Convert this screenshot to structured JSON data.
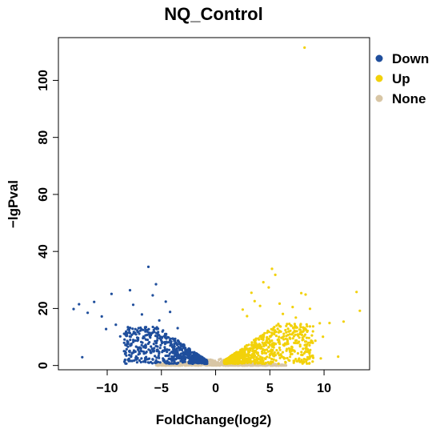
{
  "chart_data": {
    "type": "scatter",
    "title": "NQ_Control",
    "xlabel": "FoldChange(log2)",
    "ylabel": "−lgPval",
    "xlim": [
      -14.5,
      14.2
    ],
    "ylim": [
      -1.5,
      115
    ],
    "xticks": [
      -10,
      -5,
      0,
      5,
      10
    ],
    "xtick_labels": [
      "−10",
      "−5",
      "0",
      "5",
      "10"
    ],
    "yticks": [
      0,
      20,
      40,
      60,
      80,
      100
    ],
    "ytick_labels": [
      "0",
      "20",
      "40",
      "60",
      "80",
      "100"
    ],
    "grid": false,
    "legend_position": "right",
    "series": [
      {
        "name": "Down",
        "color": "#1f4e9c",
        "points": [
          [
            -13.1,
            19.8
          ],
          [
            -12.6,
            21.5
          ],
          [
            -12.3,
            2.9
          ],
          [
            -11.8,
            18.5
          ],
          [
            -11.2,
            22.3
          ],
          [
            -10.5,
            17.2
          ],
          [
            -10.1,
            12.8
          ],
          [
            -9.6,
            25.1
          ],
          [
            -9.2,
            14.3
          ],
          [
            -8.8,
            10.2
          ],
          [
            -8.4,
            9.1
          ],
          [
            -7.9,
            26.4
          ],
          [
            -7.6,
            21.3
          ],
          [
            -7.2,
            8.7
          ],
          [
            -6.8,
            17.9
          ],
          [
            -6.5,
            13.4
          ],
          [
            -6.2,
            34.6
          ],
          [
            -5.8,
            24.6
          ],
          [
            -5.5,
            28.5
          ],
          [
            -5.2,
            15.8
          ],
          [
            -4.9,
            11.9
          ],
          [
            -4.6,
            22.4
          ],
          [
            -4.2,
            18.8
          ],
          [
            -3.8,
            7.4
          ],
          [
            -3.5,
            13.1
          ]
        ],
        "cloud": {
          "count": 650,
          "x_range": [
            -8.5,
            -0.8
          ],
          "y_max": 13
        }
      },
      {
        "name": "Up",
        "color": "#f2d10a",
        "points": [
          [
            8.2,
            111.5
          ],
          [
            13.0,
            25.8
          ],
          [
            13.3,
            19.2
          ],
          [
            11.8,
            15.4
          ],
          [
            10.5,
            14.9
          ],
          [
            9.9,
            10.1
          ],
          [
            9.6,
            14.8
          ],
          [
            9.2,
            8.7
          ],
          [
            8.7,
            19.9
          ],
          [
            8.3,
            24.9
          ],
          [
            7.9,
            25.4
          ],
          [
            7.4,
            16.8
          ],
          [
            7.1,
            20.5
          ],
          [
            6.8,
            14.6
          ],
          [
            6.2,
            18.1
          ],
          [
            5.9,
            21.7
          ],
          [
            5.5,
            31.8
          ],
          [
            5.2,
            33.9
          ],
          [
            4.9,
            27.4
          ],
          [
            4.4,
            29.2
          ],
          [
            4.1,
            20.9
          ],
          [
            3.6,
            22.6
          ],
          [
            3.3,
            25.5
          ],
          [
            2.9,
            17.3
          ],
          [
            2.5,
            19.6
          ],
          [
            11.3,
            3.1
          ],
          [
            9.7,
            2.5
          ]
        ],
        "cloud": {
          "count": 800,
          "x_range": [
            0.8,
            9.0
          ],
          "y_max": 14
        }
      },
      {
        "name": "None",
        "color": "#d8c6a5",
        "points": [],
        "cloud": {
          "count": 700,
          "x_range": [
            -5.5,
            6.5
          ],
          "y_max": 2.5
        }
      }
    ]
  }
}
